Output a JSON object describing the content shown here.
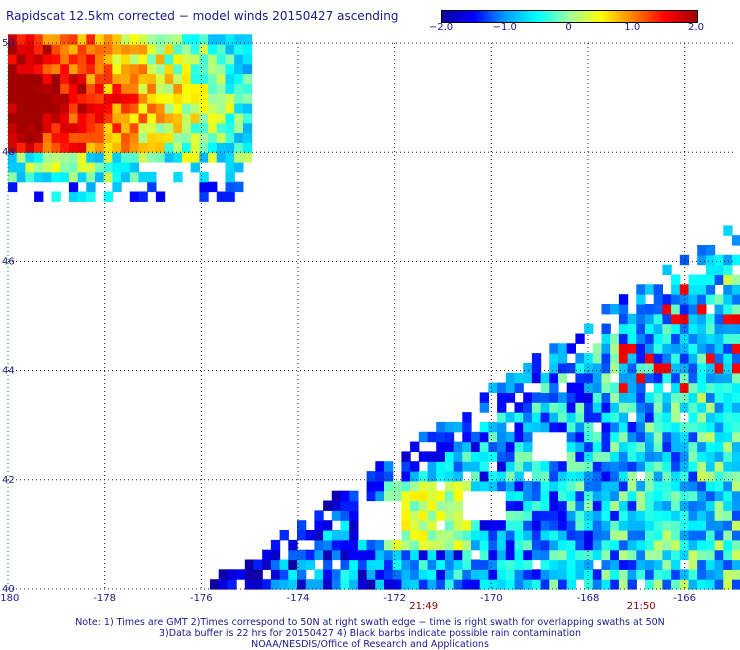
{
  "title": "Rapidscat 12.5km corrected − model winds 20150427 ascending",
  "colorbar": {
    "labels": [
      "−2.0",
      "−1.0",
      "0",
      "1.0",
      "2.0"
    ],
    "values": [
      -2.0,
      -1.0,
      0,
      1.0,
      2.0
    ],
    "range": [
      -2.0,
      2.0
    ],
    "colors": [
      "#1000a0",
      "#0000ff",
      "#00a0ff",
      "#00ffff",
      "#a0ffa0",
      "#ffff00",
      "#ff8000",
      "#ff0000",
      "#a00000"
    ]
  },
  "map": {
    "lon_range": [
      -180,
      -165
    ],
    "lat_range": [
      40,
      50
    ],
    "lon_ticks": [
      "-180",
      "-178",
      "-176",
      "-174",
      "-172",
      "-170",
      "-168",
      "-166"
    ],
    "lon_tick_values": [
      -180,
      -178,
      -176,
      -174,
      -172,
      -170,
      -168,
      -166
    ],
    "lat_ticks": [
      "50",
      "48",
      "46",
      "44",
      "42",
      "40"
    ],
    "lat_tick_values": [
      50,
      48,
      46,
      44,
      42,
      40
    ],
    "gridlines": "dotted",
    "time_labels": [
      {
        "text": "21:49",
        "lon": -171.4
      },
      {
        "text": "21:50",
        "lon": -166.9
      }
    ],
    "time_color": "#8b0000",
    "swaths": [
      {
        "name": "northwest swath",
        "lon": [
          -180,
          -175
        ],
        "lat": [
          47.1,
          50
        ],
        "dominant": "positive (up to ~+2.0)"
      },
      {
        "name": "southeast swath",
        "lon": [
          -175.9,
          -165
        ],
        "lat": [
          40,
          46.7
        ],
        "dominant": "near 0 to −2.0"
      }
    ]
  },
  "notes": [
    "Note: 1) Times are GMT 2)Times correspond to 50N at right swath edge − time is right swath for overlapping swaths at 50N",
    "3)Data buffer is 22 hrs for 20150427 4) Black barbs indicate possible rain contamination",
    "NOAA/NESDIS/Office of Research and Applications"
  ]
}
